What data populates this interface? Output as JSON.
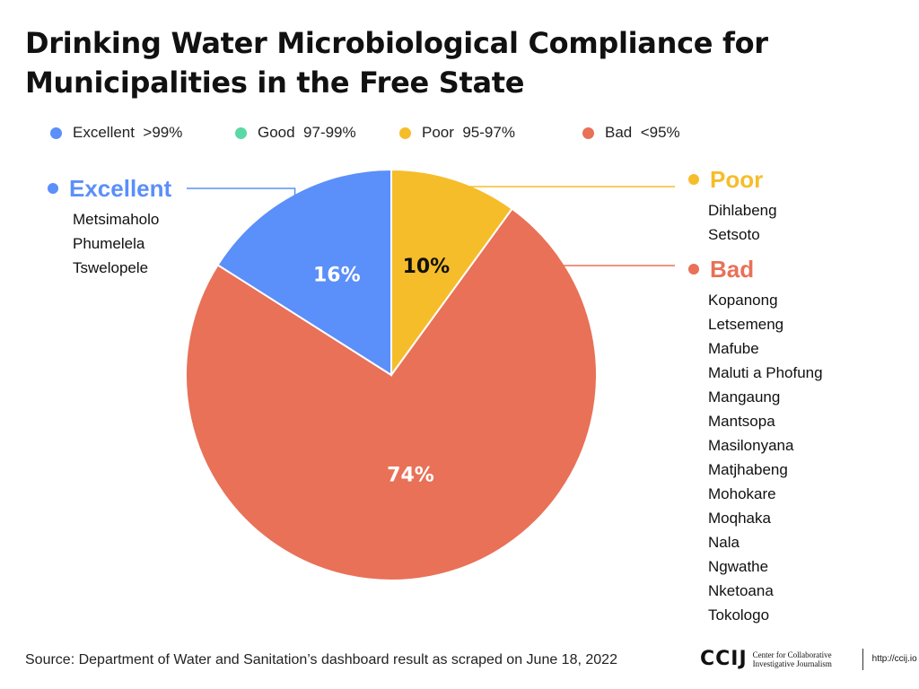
{
  "title": {
    "line1": "Drinking Water Microbiological Compliance for",
    "line2": "Municipalities in the Free State"
  },
  "legend": [
    {
      "label": "Excellent  >99%",
      "color": "#5B8FF9"
    },
    {
      "label": "Good  97-99%",
      "color": "#5AD8A6"
    },
    {
      "label": "Poor  95-97%",
      "color": "#F6BD2A"
    },
    {
      "label": "Bad  <95%",
      "color": "#E87158"
    }
  ],
  "chart_data": {
    "type": "pie",
    "title": "Drinking Water Microbiological Compliance for Municipalities in the Free State",
    "legend_position": "top",
    "slices": [
      {
        "name": "Poor",
        "value": 10,
        "label": "10%",
        "color": "#F6BD2A",
        "label_color": "#111111"
      },
      {
        "name": "Bad",
        "value": 74,
        "label": "74%",
        "color": "#E87158",
        "label_color": "#ffffff"
      },
      {
        "name": "Excellent",
        "value": 16,
        "label": "16%",
        "color": "#5B8FF9",
        "label_color": "#ffffff"
      }
    ]
  },
  "callouts": {
    "excellent": {
      "title": "Excellent",
      "color": "#5B8FF9",
      "items": [
        "Metsimaholo",
        "Phumelela",
        "Tswelopele"
      ]
    },
    "poor": {
      "title": "Poor",
      "color": "#F6BD2A",
      "items": [
        "Dihlabeng",
        "Setsoto"
      ]
    },
    "bad": {
      "title": "Bad",
      "color": "#E87158",
      "items": [
        "Kopanong",
        "Letsemeng",
        "Mafube",
        "Maluti a Phofung",
        "Mangaung",
        "Mantsopa",
        "Masilonyana",
        "Matjhabeng",
        "Mohokare",
        "Moqhaka",
        "Nala",
        "Ngwathe",
        "Nketoana",
        "Tokologo"
      ]
    }
  },
  "footer": {
    "source": "Source: Department of Water and Sanitation’s dashboard result as scraped on June 18, 2022",
    "logo": "CCIJ",
    "org_line1": "Center for Collaborative",
    "org_line2": "Investigative Journalism",
    "url": "http://ccij.io"
  }
}
